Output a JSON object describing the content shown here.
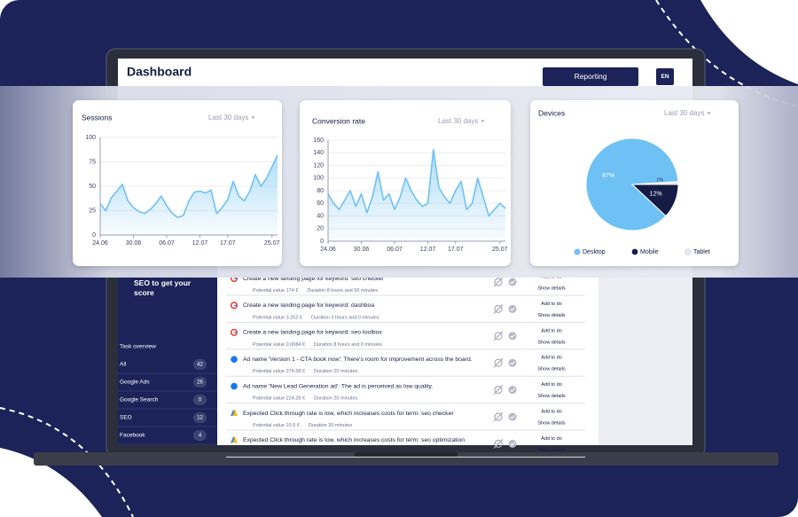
{
  "header": {
    "title": "Dashboard",
    "reporting_button": "Reporting",
    "language": "EN"
  },
  "chart_data": [
    {
      "type": "line",
      "title": "Sessions",
      "range_selector": "Last 30 days",
      "categories": [
        "24.06",
        null,
        null,
        null,
        null,
        null,
        "30.06",
        null,
        null,
        null,
        null,
        null,
        "06.07",
        null,
        null,
        null,
        null,
        null,
        "12.07",
        null,
        null,
        null,
        null,
        "17.07",
        null,
        null,
        null,
        null,
        null,
        null,
        null,
        "25.07",
        null
      ],
      "values": [
        32,
        25,
        38,
        45,
        52,
        35,
        28,
        24,
        22,
        26,
        32,
        40,
        30,
        22,
        18,
        20,
        35,
        44,
        45,
        43,
        46,
        22,
        28,
        36,
        55,
        40,
        35,
        45,
        62,
        50,
        58,
        70,
        82
      ],
      "color": "#6ec1f5",
      "ylim": [
        0,
        100
      ],
      "yticks": [
        0,
        25,
        50,
        75,
        100
      ],
      "grid": true
    },
    {
      "type": "line",
      "title": "Conversion rate",
      "range_selector": "Last 30 days",
      "categories": [
        "24.06",
        null,
        null,
        null,
        null,
        null,
        "30.06",
        null,
        null,
        null,
        null,
        null,
        "06.07",
        null,
        null,
        null,
        null,
        null,
        "12.07",
        null,
        null,
        null,
        null,
        "17.07",
        null,
        null,
        null,
        null,
        null,
        null,
        null,
        "25.07",
        null
      ],
      "values": [
        75,
        60,
        50,
        65,
        80,
        55,
        75,
        45,
        70,
        110,
        65,
        75,
        50,
        70,
        100,
        80,
        65,
        55,
        60,
        145,
        85,
        70,
        60,
        80,
        95,
        50,
        60,
        100,
        70,
        40,
        50,
        60,
        52
      ],
      "color": "#6ec1f5",
      "ylim": [
        0,
        160
      ],
      "yticks": [
        0,
        20,
        40,
        60,
        80,
        100,
        120,
        140,
        160
      ],
      "grid": true
    },
    {
      "type": "pie",
      "title": "Devices",
      "range_selector": "Last 30 days",
      "categories": [
        "Desktop",
        "Mobile",
        "Tablet"
      ],
      "values": [
        87,
        12,
        1
      ],
      "value_labels": [
        "87%",
        "12%",
        "1%"
      ],
      "colors": [
        "#6ec1f5",
        "#141c46",
        "#e6e7f5"
      ]
    }
  ],
  "sidebar": {
    "promo": "SEO to get your score",
    "section_title": "Task overview",
    "filters": [
      {
        "label": "All",
        "count": 42
      },
      {
        "label": "Google Ads",
        "count": 26
      },
      {
        "label": "Google Search",
        "count": 0
      },
      {
        "label": "SEO",
        "count": 12
      },
      {
        "label": "Facebook",
        "count": 4
      }
    ]
  },
  "task_actions": {
    "add": "Add to do",
    "details": "Show details"
  },
  "tasks": [
    {
      "icon": "google",
      "title": "Create a new landing page for keyword: seo checker",
      "potential_value": "Potential value 174 €",
      "duration": "Duration 8 hours and 50 minutes"
    },
    {
      "icon": "google",
      "title": "Create a new landing page for keyword: dashboa",
      "potential_value": "Potential value 3.252 €",
      "duration": "Duration 3 hours and 0 minutes"
    },
    {
      "icon": "google",
      "title": "Create a new landing page for keyword: seo toolbox",
      "potential_value": "Potential value 0.0084 €",
      "duration": "Duration 8 hours and 0 minutes"
    },
    {
      "icon": "facebook",
      "title": "Ad name 'Version 1 - CTA book now': There's room for improvement across the board.",
      "potential_value": "Potential value 274.58 €",
      "duration": "Duration 20 minutes"
    },
    {
      "icon": "facebook",
      "title": "Ad name 'New Lead Generation ad': The ad is perceived as low quality.",
      "potential_value": "Potential value 224.28 €",
      "duration": "Duration 20 minutes"
    },
    {
      "icon": "ads",
      "title": "Expected Click through rate is low, which increases costs for term: seo checker",
      "potential_value": "Potential value 10.5 €",
      "duration": "Duration 20 minutes"
    },
    {
      "icon": "ads",
      "title": "Expected Click through rate is low, which increases costs for term: seo optimization",
      "potential_value": "",
      "duration": ""
    }
  ]
}
